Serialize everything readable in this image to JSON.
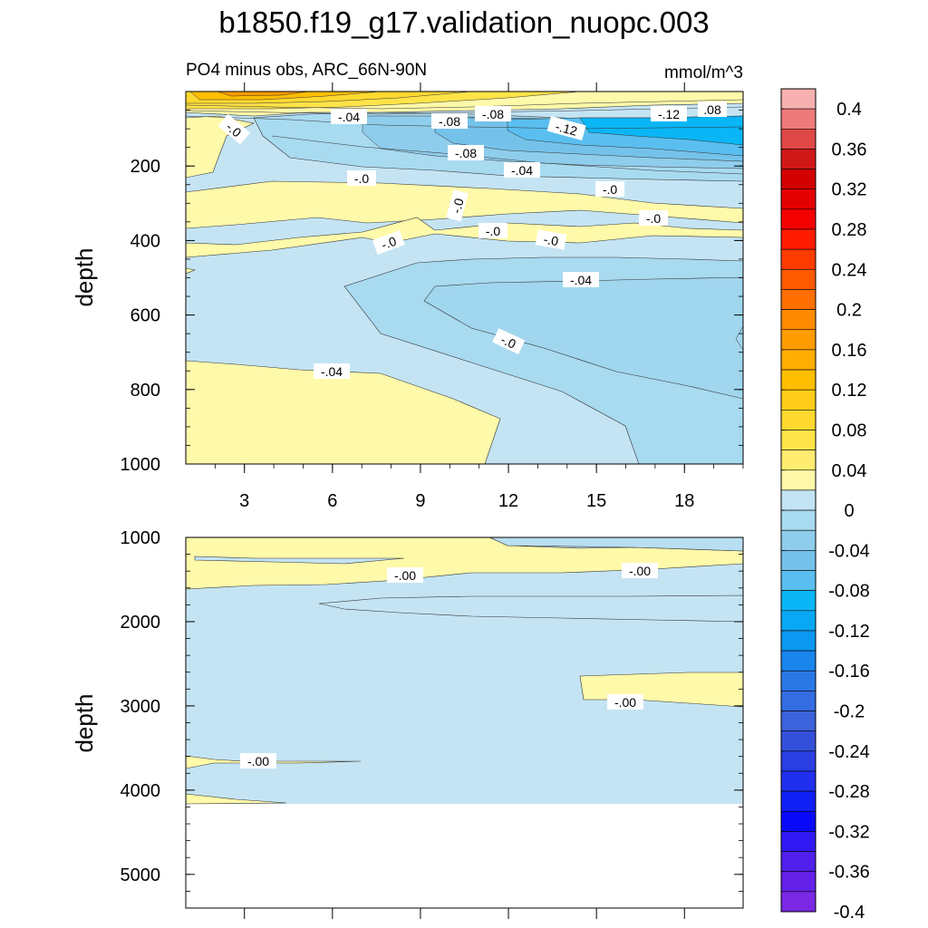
{
  "title": "b1850.f19_g17.validation_nuopc.003",
  "chart_data": [
    {
      "type": "contour",
      "panel": "upper",
      "subtitle_left": "PO4 minus obs, ARC_66N-90N",
      "subtitle_right": "mmol/m^3",
      "ylabel": "depth",
      "xlabel": "",
      "xlim": [
        1,
        20
      ],
      "ylim": [
        1000,
        0
      ],
      "xticks": [
        "3",
        "6",
        "9",
        "12",
        "15",
        "18"
      ],
      "yticks": [
        "200",
        "400",
        "600",
        "800",
        "1000"
      ],
      "contour_labels": [
        "-.0",
        "-.04",
        "-.08",
        "-.08",
        "-.12",
        ".08",
        "-.04",
        "-.0",
        "-.0",
        "-.0",
        "-.0",
        "-.0",
        "-.0",
        "-.0",
        "-.04",
        "-.04",
        "-.0",
        "-.08",
        "-.12"
      ],
      "field_summary": {
        "surface_0_50m": "positive 0.04 to 0.16 near x=2-8",
        "upper_50_200m": "negative down to -0.12 to -0.16 for x>12",
        "mid_450_1000m": "negative -0.04 to -0.08 for x>9",
        "deep_700_1000m_x_lt_11": "approximately 0 to 0.04"
      }
    },
    {
      "type": "contour",
      "panel": "lower",
      "ylabel": "depth",
      "xlabel": "",
      "xlim": [
        1,
        20
      ],
      "ylim": [
        5400,
        1000
      ],
      "yticks": [
        "1000",
        "2000",
        "3000",
        "4000",
        "5000"
      ],
      "contour_labels": [
        "-.00",
        "-.00",
        "-.00",
        "-.00"
      ],
      "field_summary": {
        "general": "values near 0 to -0.04 throughout",
        "below_4100m": "no data"
      }
    }
  ],
  "colorbar": {
    "labels": [
      "0.4",
      "0.36",
      "0.32",
      "0.28",
      "0.24",
      "0.2",
      "0.16",
      "0.12",
      "0.08",
      "0.04",
      "0",
      "-0.04",
      "-0.08",
      "-0.12",
      "-0.16",
      "-0.2",
      "-0.24",
      "-0.28",
      "-0.32",
      "-0.36",
      "-0.4"
    ],
    "colors": [
      "#f7b0b0",
      "#ef7a7a",
      "#e04848",
      "#d01818",
      "#d20000",
      "#e50000",
      "#f50000",
      "#ff1a00",
      "#ff3c00",
      "#ff5a00",
      "#ff7000",
      "#ff8a00",
      "#ff9c00",
      "#ffad00",
      "#ffbe00",
      "#ffcd18",
      "#ffd930",
      "#ffe348",
      "#ffec70",
      "#fff7a8",
      "#c4e4f4",
      "#a8daf0",
      "#8fcdec",
      "#74c2ea",
      "#5abff0",
      "#0ab6f5",
      "#08a8f5",
      "#0a98f2",
      "#1a86ec",
      "#2a78e6",
      "#346ce2",
      "#3c62dc",
      "#3450da",
      "#2a3ee2",
      "#2030ee",
      "#1020f6",
      "#0a0af8",
      "#3018f2",
      "#5020ea",
      "#6420e6",
      "#7a28e4"
    ]
  }
}
